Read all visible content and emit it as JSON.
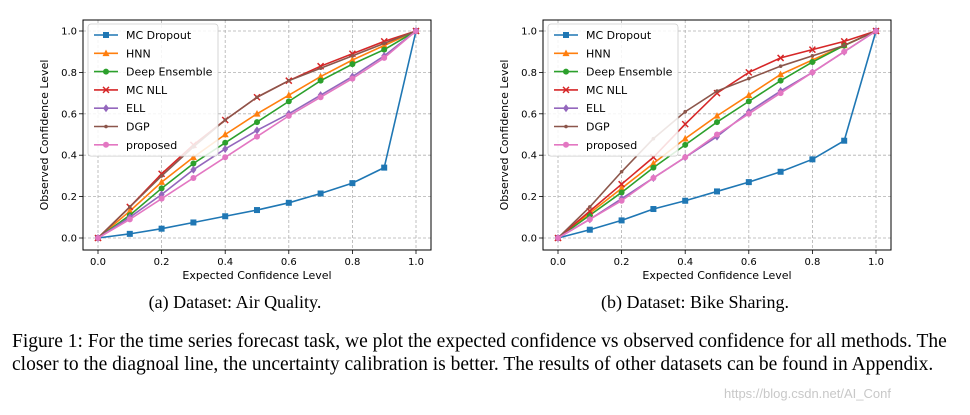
{
  "chart_data": [
    {
      "type": "line",
      "xlabel": "Expected Confidence Level",
      "ylabel": "Observed Confidence Level",
      "xlim": [
        0,
        1
      ],
      "ylim": [
        0,
        1
      ],
      "xticks": [
        "0.0",
        "0.2",
        "0.4",
        "0.6",
        "0.8",
        "1.0"
      ],
      "yticks": [
        "0.0",
        "0.2",
        "0.4",
        "0.6",
        "0.8",
        "1.0"
      ],
      "grid": true,
      "legend_position": "upper-left",
      "subcaption": "(a)  Dataset: Air Quality.",
      "x": [
        0,
        0.1,
        0.2,
        0.3,
        0.4,
        0.5,
        0.6,
        0.7,
        0.8,
        0.9,
        1.0
      ],
      "series": [
        {
          "name": "MC Dropout",
          "color": "#1f77b4",
          "marker": "square",
          "values": [
            0,
            0.02,
            0.045,
            0.075,
            0.105,
            0.135,
            0.17,
            0.215,
            0.265,
            0.34,
            1.0
          ]
        },
        {
          "name": "HNN",
          "color": "#ff7f0e",
          "marker": "triangle",
          "values": [
            0,
            0.13,
            0.27,
            0.39,
            0.5,
            0.6,
            0.69,
            0.78,
            0.86,
            0.93,
            1.0
          ]
        },
        {
          "name": "Deep Ensemble",
          "color": "#2ca02c",
          "marker": "circle",
          "values": [
            0,
            0.11,
            0.24,
            0.36,
            0.46,
            0.56,
            0.66,
            0.76,
            0.84,
            0.91,
            1.0
          ]
        },
        {
          "name": "MC NLL",
          "color": "#d62728",
          "marker": "x",
          "values": [
            0,
            0.15,
            0.31,
            0.45,
            0.57,
            0.68,
            0.76,
            0.83,
            0.89,
            0.95,
            1.0
          ]
        },
        {
          "name": "ELL",
          "color": "#9467bd",
          "marker": "diamond",
          "values": [
            0,
            0.1,
            0.21,
            0.33,
            0.43,
            0.52,
            0.6,
            0.69,
            0.78,
            0.88,
            1.0
          ]
        },
        {
          "name": "DGP",
          "color": "#8c564b",
          "marker": "dot",
          "values": [
            0,
            0.15,
            0.3,
            0.44,
            0.57,
            0.68,
            0.76,
            0.82,
            0.88,
            0.94,
            1.0
          ]
        },
        {
          "name": "proposed",
          "color": "#e377c2",
          "marker": "circle",
          "values": [
            0,
            0.09,
            0.19,
            0.29,
            0.39,
            0.49,
            0.59,
            0.68,
            0.77,
            0.87,
            1.0
          ]
        }
      ]
    },
    {
      "type": "line",
      "xlabel": "Expected Confidence Level",
      "ylabel": "Observed Confidence Level",
      "xlim": [
        0,
        1
      ],
      "ylim": [
        0,
        1
      ],
      "xticks": [
        "0.0",
        "0.2",
        "0.4",
        "0.6",
        "0.8",
        "1.0"
      ],
      "yticks": [
        "0.0",
        "0.2",
        "0.4",
        "0.6",
        "0.8",
        "1.0"
      ],
      "grid": true,
      "legend_position": "upper-left",
      "subcaption": "(b)  Dataset: Bike Sharing.",
      "x": [
        0,
        0.1,
        0.2,
        0.3,
        0.4,
        0.5,
        0.6,
        0.7,
        0.8,
        0.9,
        1.0
      ],
      "series": [
        {
          "name": "MC Dropout",
          "color": "#1f77b4",
          "marker": "square",
          "values": [
            0,
            0.04,
            0.085,
            0.14,
            0.18,
            0.225,
            0.27,
            0.32,
            0.38,
            0.47,
            1.0
          ]
        },
        {
          "name": "HNN",
          "color": "#ff7f0e",
          "marker": "triangle",
          "values": [
            0,
            0.12,
            0.24,
            0.36,
            0.48,
            0.59,
            0.69,
            0.79,
            0.86,
            0.93,
            1.0
          ]
        },
        {
          "name": "Deep Ensemble",
          "color": "#2ca02c",
          "marker": "circle",
          "values": [
            0,
            0.11,
            0.22,
            0.34,
            0.45,
            0.56,
            0.66,
            0.76,
            0.85,
            0.93,
            1.0
          ]
        },
        {
          "name": "MC NLL",
          "color": "#d62728",
          "marker": "x",
          "values": [
            0,
            0.13,
            0.26,
            0.39,
            0.55,
            0.7,
            0.8,
            0.87,
            0.91,
            0.95,
            1.0
          ]
        },
        {
          "name": "ELL",
          "color": "#9467bd",
          "marker": "diamond",
          "values": [
            0,
            0.09,
            0.19,
            0.29,
            0.39,
            0.49,
            0.61,
            0.71,
            0.8,
            0.9,
            1.0
          ]
        },
        {
          "name": "DGP",
          "color": "#8c564b",
          "marker": "dot",
          "values": [
            0,
            0.15,
            0.32,
            0.48,
            0.61,
            0.71,
            0.77,
            0.83,
            0.88,
            0.93,
            1.0
          ]
        },
        {
          "name": "proposed",
          "color": "#e377c2",
          "marker": "circle",
          "values": [
            0,
            0.09,
            0.18,
            0.29,
            0.39,
            0.5,
            0.6,
            0.7,
            0.8,
            0.9,
            1.0
          ]
        }
      ]
    }
  ],
  "caption": "Figure 1: For the time series forecast task, we plot the expected confidence vs observed confidence for all methods. The closer to the diagnoal line, the uncertainty calibration is better. The results of other datasets can be found in Appendix.",
  "watermark": "https://blog.csdn.net/AI_Conf"
}
